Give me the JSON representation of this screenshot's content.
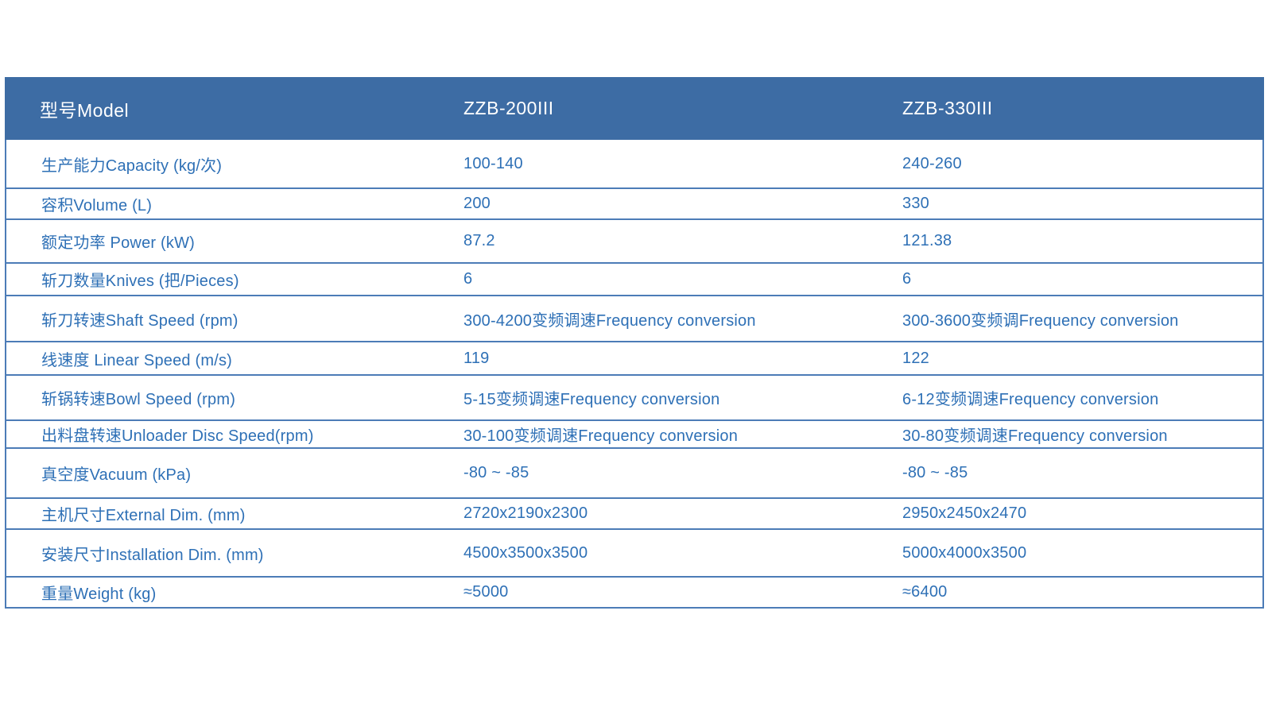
{
  "table": {
    "title_context": "machine-specification-table",
    "colors": {
      "header_bg": "#3D6CA4",
      "text_blue": "#2E70B6",
      "line_blue": "#4C7CB7"
    },
    "header": {
      "col1": "型号Model",
      "col2": "ZZB-200III",
      "col3": "ZZB-330III"
    },
    "rows": [
      {
        "label": "生产能力Capacity (kg/次)",
        "v1": "100-140",
        "v2": "240-260"
      },
      {
        "label": "容积Volume (L)",
        "v1": "200",
        "v2": "330"
      },
      {
        "label": "额定功率 Power (kW)",
        "v1": "87.2",
        "v2": "121.38"
      },
      {
        "label": "斩刀数量Knives (把/Pieces)",
        "v1": "6",
        "v2": "6"
      },
      {
        "label": "斩刀转速Shaft Speed (rpm)",
        "v1": "300-4200变频调速Frequency conversion",
        "v2": "300-3600变频调Frequency conversion"
      },
      {
        "label": "线速度 Linear Speed (m/s)",
        "v1": "119",
        "v2": "122"
      },
      {
        "label": "斩锅转速Bowl Speed (rpm)",
        "v1": "5-15变频调速Frequency conversion",
        "v2": "6-12变频调速Frequency conversion"
      },
      {
        "label": "出料盘转速Unloader Disc Speed(rpm)",
        "v1": "30-100变频调速Frequency conversion",
        "v2": "30-80变频调速Frequency conversion"
      },
      {
        "label": "真空度Vacuum (kPa)",
        "v1": "-80 ~ -85",
        "v2": "-80 ~ -85"
      },
      {
        "label": "主机尺寸External Dim. (mm)",
        "v1": "2720x2190x2300",
        "v2": "2950x2450x2470"
      },
      {
        "label": "安装尺寸Installation Dim. (mm)",
        "v1": "4500x3500x3500",
        "v2": "5000x4000x3500"
      },
      {
        "label": "重量Weight (kg)",
        "v1": "≈5000",
        "v2": "≈6400"
      }
    ]
  }
}
